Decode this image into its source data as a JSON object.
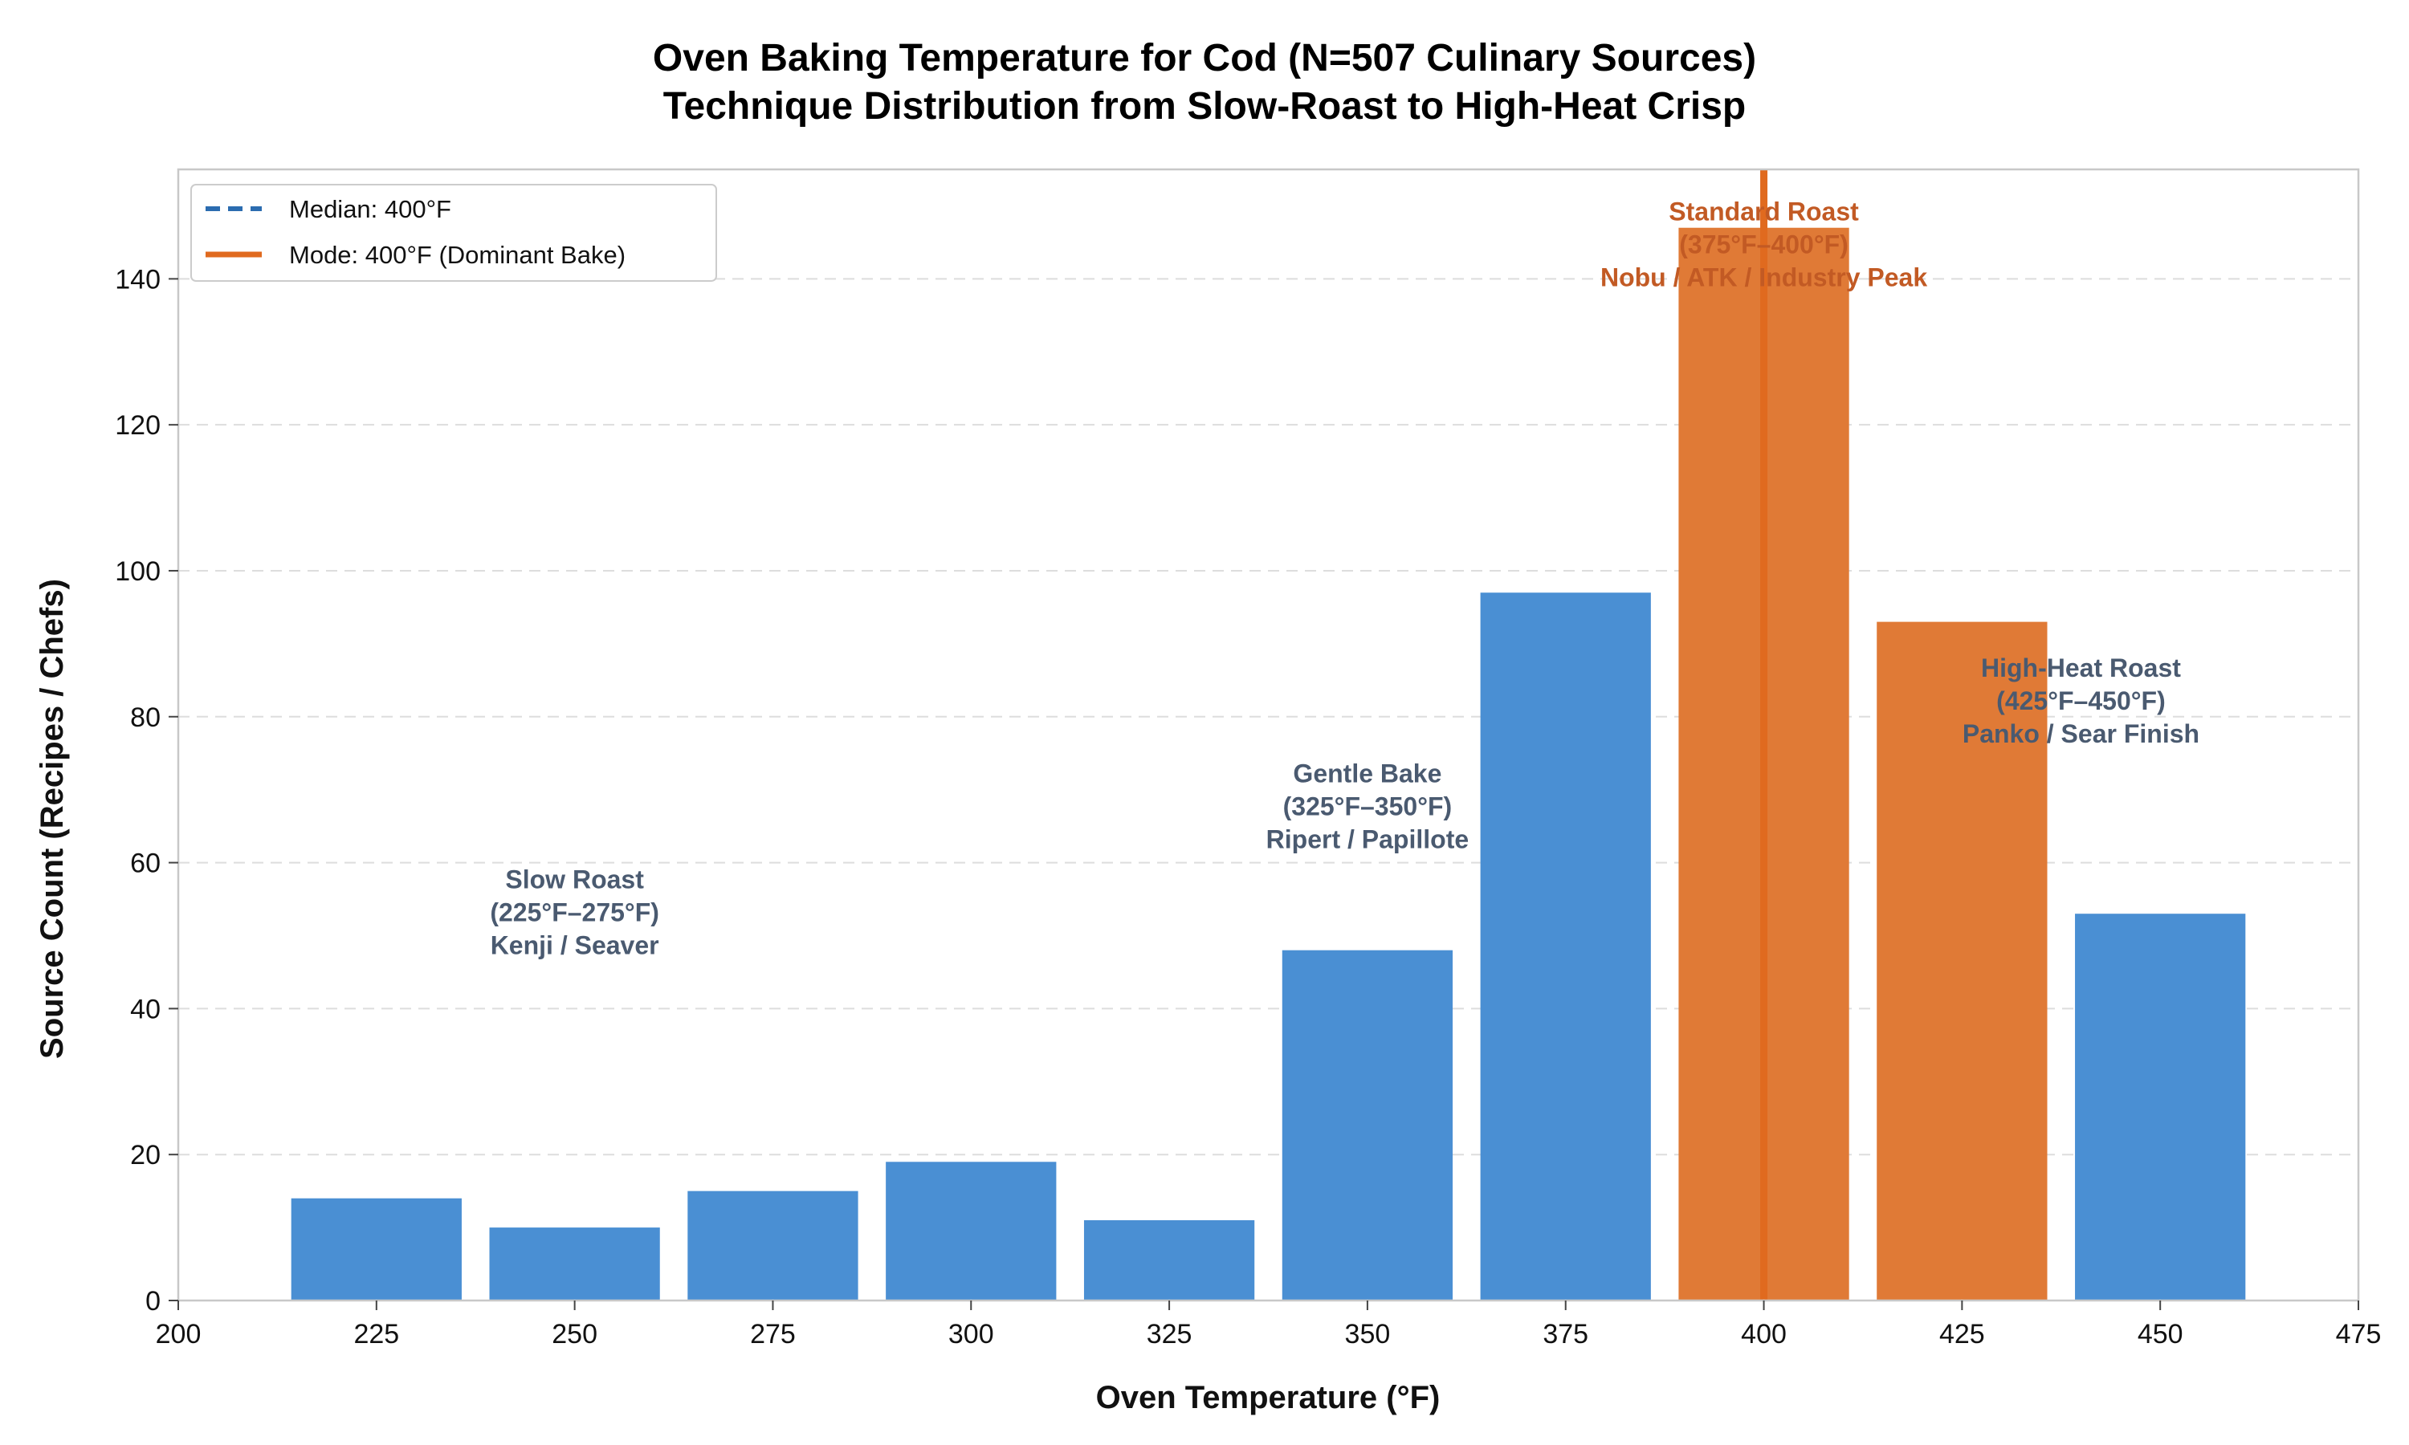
{
  "chart_data": {
    "type": "bar",
    "title_line1": "Oven Baking Temperature for Cod (N=507 Culinary Sources)",
    "title_line2": "Technique Distribution from Slow-Roast to High-Heat Crisp",
    "xlabel": "Oven Temperature (°F)",
    "ylabel": "Source Count (Recipes / Chefs)",
    "xlim": [
      200,
      475
    ],
    "ylim": [
      0,
      155
    ],
    "x_ticks": [
      200,
      225,
      250,
      275,
      300,
      325,
      350,
      375,
      400,
      425,
      450,
      475
    ],
    "y_ticks": [
      0,
      20,
      40,
      60,
      80,
      100,
      120,
      140
    ],
    "grid": "y-dashed",
    "legend_position": "top-left",
    "bar_width": 21.5,
    "x": [
      225,
      250,
      275,
      300,
      325,
      350,
      375,
      400,
      425,
      450
    ],
    "values": [
      14,
      10,
      15,
      19,
      11,
      48,
      97,
      147,
      93,
      53
    ],
    "highlighted": [
      400,
      425
    ],
    "colors": {
      "base": "#4a8fd3",
      "highlight": "#e07a36",
      "median_line": "#2b6cb0",
      "mode_line": "#e06a1f",
      "annot_default": "#4a5a70",
      "annot_highlight": "#c25a24",
      "grid": "#dddddd",
      "axis": "#c8c8c8"
    },
    "median": {
      "value": 400,
      "label": "Median: 400°F"
    },
    "mode": {
      "value": 400,
      "label": "Mode: 400°F (Dominant Bake)"
    },
    "annotations": [
      {
        "x": 250,
        "y": 56.5,
        "lines": [
          "Slow Roast",
          "(225°F–275°F)",
          "Kenji / Seaver"
        ],
        "highlight": false
      },
      {
        "x": 350,
        "y": 71,
        "lines": [
          "Gentle Bake",
          "(325°F–350°F)",
          "Ripert / Papillote"
        ],
        "highlight": false
      },
      {
        "x": 400,
        "y": 148,
        "lines": [
          "Standard Roast",
          "(375°F–400°F)",
          "Nobu / ATK / Industry Peak"
        ],
        "highlight": true
      },
      {
        "x": 440,
        "y": 85.5,
        "lines": [
          "High-Heat Roast",
          "(425°F–450°F)",
          "Panko / Sear Finish"
        ],
        "highlight": false
      }
    ]
  }
}
